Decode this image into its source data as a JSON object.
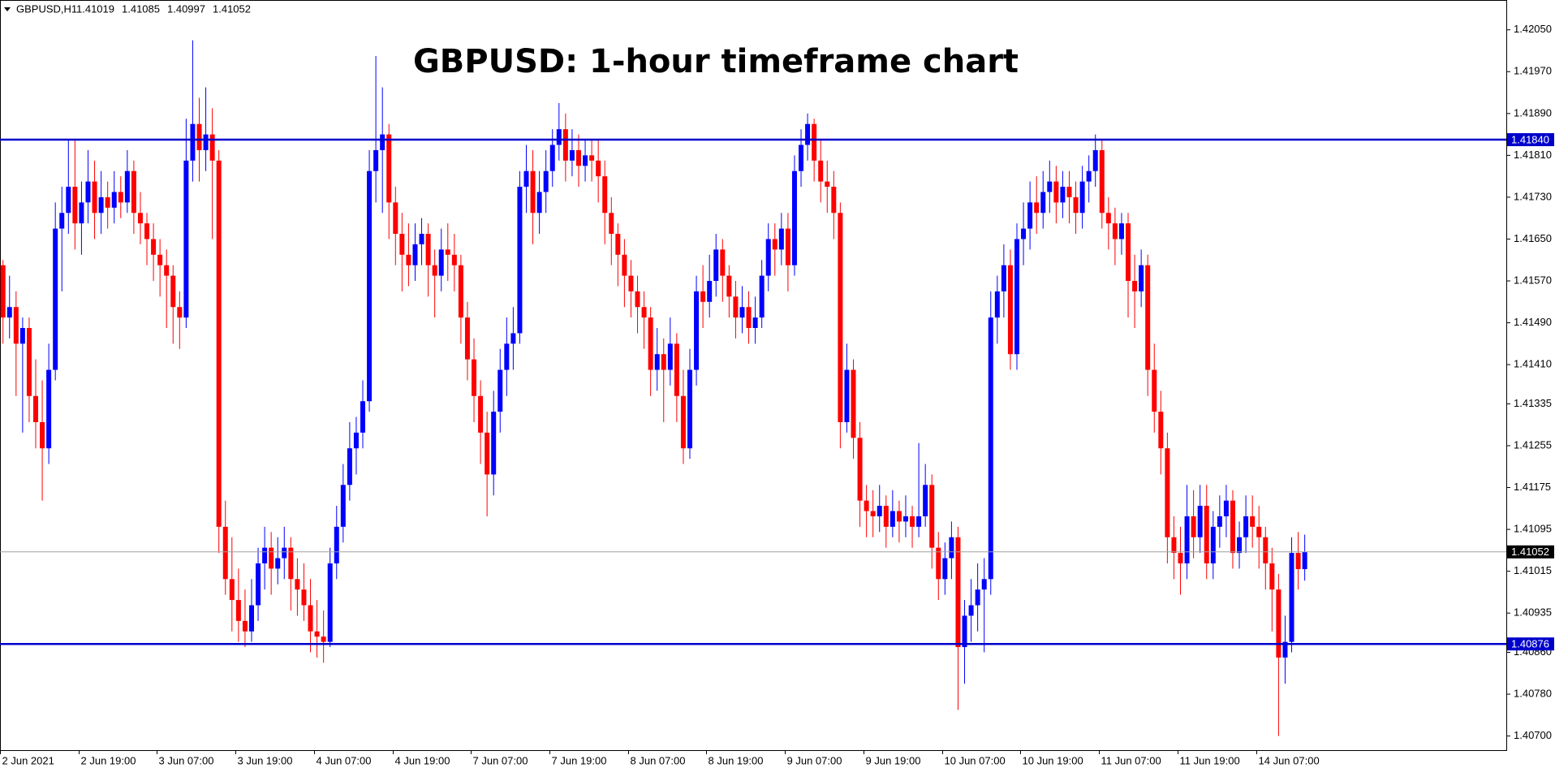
{
  "header": {
    "symbol": "GBPUSD,H1"
  },
  "chart_data": {
    "type": "candlestick",
    "title": "GBPUSD: 1-hour timeframe chart",
    "up_color": "#0000ff",
    "down_color": "#ff0000",
    "xtick_labels": [
      "2 Jun 2021",
      "2 Jun 19:00",
      "3 Jun 07:00",
      "3 Jun 19:00",
      "4 Jun 07:00",
      "4 Jun 19:00",
      "7 Jun 07:00",
      "7 Jun 19:00",
      "8 Jun 07:00",
      "8 Jun 19:00",
      "9 Jun 07:00",
      "9 Jun 19:00",
      "10 Jun 07:00",
      "10 Jun 19:00",
      "11 Jun 07:00",
      "11 Jun 19:00",
      "14 Jun 07:00"
    ],
    "ylim": [
      1.40673,
      1.42107
    ],
    "yticks": [
      {
        "value": 1.4205,
        "label": "1.42050"
      },
      {
        "value": 1.4197,
        "label": "1.41970"
      },
      {
        "value": 1.4189,
        "label": "1.41890"
      },
      {
        "value": 1.4181,
        "label": "1.41810"
      },
      {
        "value": 1.4173,
        "label": "1.41730"
      },
      {
        "value": 1.4165,
        "label": "1.41650"
      },
      {
        "value": 1.4157,
        "label": "1.41570"
      },
      {
        "value": 1.4149,
        "label": "1.41490"
      },
      {
        "value": 1.4141,
        "label": "1.41410"
      },
      1.41335,
      1.41255,
      1.41175,
      1.41095,
      1.41015,
      1.40935,
      {
        "value": 1.4086,
        "label": "1.40860"
      },
      {
        "value": 1.4078,
        "label": "1.40780"
      },
      {
        "value": 1.407,
        "label": "1.40700"
      }
    ],
    "levels": [
      {
        "value": 1.4184,
        "label": "1.41840",
        "color": "#0000cc"
      },
      {
        "value": 1.40876,
        "color": "#0000cc"
      },
      {
        "value": 1.41052,
        "color": "#000000"
      }
    ],
    "values": [
      [
        1.416,
        1.4161,
        1.4145,
        1.415
      ],
      [
        1.415,
        1.4158,
        1.4146,
        1.4152
      ],
      [
        1.4152,
        1.4155,
        1.4135,
        1.4145
      ],
      [
        1.4145,
        1.415,
        1.4128,
        1.4148
      ],
      [
        1.4148,
        1.415,
        1.413,
        1.4135
      ],
      [
        1.4135,
        1.4142,
        1.4125,
        1.413
      ],
      [
        1.413,
        1.4138,
        1.4115,
        1.4125
      ],
      [
        1.4125,
        1.4145,
        1.4122,
        1.414
      ],
      [
        1.414,
        1.4172,
        1.4138,
        1.4167
      ],
      [
        1.4167,
        1.4175,
        1.4155,
        1.417
      ],
      [
        1.417,
        1.4184,
        1.4166,
        1.4175
      ],
      [
        1.4175,
        1.4184,
        1.4163,
        1.4168
      ],
      [
        1.4168,
        1.4176,
        1.4162,
        1.4172
      ],
      [
        1.4172,
        1.4182,
        1.4168,
        1.4176
      ],
      [
        1.4176,
        1.418,
        1.4165,
        1.417
      ],
      [
        1.417,
        1.4178,
        1.4166,
        1.4173
      ],
      [
        1.4173,
        1.4176,
        1.4167,
        1.4171
      ],
      [
        1.4171,
        1.4178,
        1.4168,
        1.4174
      ],
      [
        1.4174,
        1.4177,
        1.4169,
        1.4172
      ],
      [
        1.4172,
        1.4182,
        1.417,
        1.4178
      ],
      [
        1.4178,
        1.418,
        1.4166,
        1.417
      ],
      [
        1.417,
        1.4174,
        1.4164,
        1.4168
      ],
      [
        1.4168,
        1.417,
        1.416,
        1.4165
      ],
      [
        1.4165,
        1.4168,
        1.4157,
        1.4162
      ],
      [
        1.4162,
        1.4165,
        1.4154,
        1.416
      ],
      [
        1.416,
        1.4163,
        1.4148,
        1.4158
      ],
      [
        1.4158,
        1.416,
        1.4145,
        1.4152
      ],
      [
        1.4152,
        1.4155,
        1.4144,
        1.415
      ],
      [
        1.415,
        1.4188,
        1.4148,
        1.418
      ],
      [
        1.418,
        1.4203,
        1.4176,
        1.4187
      ],
      [
        1.4187,
        1.4192,
        1.4176,
        1.4182
      ],
      [
        1.4182,
        1.4194,
        1.4178,
        1.4185
      ],
      [
        1.4185,
        1.419,
        1.4165,
        1.418
      ],
      [
        1.418,
        1.4182,
        1.4105,
        1.411
      ],
      [
        1.411,
        1.4115,
        1.4097,
        1.41
      ],
      [
        1.41,
        1.4108,
        1.409,
        1.4096
      ],
      [
        1.4096,
        1.4102,
        1.4088,
        1.4092
      ],
      [
        1.4092,
        1.4098,
        1.4087,
        1.409
      ],
      [
        1.409,
        1.41,
        1.4088,
        1.4095
      ],
      [
        1.4095,
        1.4106,
        1.4092,
        1.4103
      ],
      [
        1.4103,
        1.411,
        1.4098,
        1.4106
      ],
      [
        1.4106,
        1.4109,
        1.4097,
        1.4102
      ],
      [
        1.4102,
        1.4108,
        1.4099,
        1.4104
      ],
      [
        1.4104,
        1.411,
        1.41,
        1.4106
      ],
      [
        1.4106,
        1.4108,
        1.4094,
        1.41
      ],
      [
        1.41,
        1.4104,
        1.4093,
        1.4098
      ],
      [
        1.4098,
        1.4103,
        1.4092,
        1.4095
      ],
      [
        1.4095,
        1.41,
        1.4086,
        1.409
      ],
      [
        1.409,
        1.4096,
        1.4085,
        1.4089
      ],
      [
        1.4089,
        1.4094,
        1.4084,
        1.4088
      ],
      [
        1.4088,
        1.4106,
        1.4087,
        1.4103
      ],
      [
        1.4103,
        1.4114,
        1.41,
        1.411
      ],
      [
        1.411,
        1.4122,
        1.4107,
        1.4118
      ],
      [
        1.4118,
        1.413,
        1.4115,
        1.4125
      ],
      [
        1.4125,
        1.4131,
        1.412,
        1.4128
      ],
      [
        1.4128,
        1.4138,
        1.4125,
        1.4134
      ],
      [
        1.4134,
        1.4182,
        1.4132,
        1.4178
      ],
      [
        1.4178,
        1.42,
        1.4172,
        1.4182
      ],
      [
        1.4182,
        1.4194,
        1.417,
        1.4185
      ],
      [
        1.4185,
        1.4187,
        1.4165,
        1.4172
      ],
      [
        1.4172,
        1.4175,
        1.416,
        1.4166
      ],
      [
        1.4166,
        1.417,
        1.4155,
        1.4162
      ],
      [
        1.4162,
        1.4168,
        1.4156,
        1.416
      ],
      [
        1.416,
        1.4168,
        1.4157,
        1.4164
      ],
      [
        1.4164,
        1.4169,
        1.416,
        1.4166
      ],
      [
        1.4166,
        1.4168,
        1.4154,
        1.416
      ],
      [
        1.416,
        1.4163,
        1.415,
        1.4158
      ],
      [
        1.4158,
        1.4167,
        1.4155,
        1.4163
      ],
      [
        1.4163,
        1.4168,
        1.4157,
        1.4162
      ],
      [
        1.4162,
        1.4166,
        1.4155,
        1.416
      ],
      [
        1.416,
        1.4162,
        1.4145,
        1.415
      ],
      [
        1.415,
        1.4153,
        1.4138,
        1.4142
      ],
      [
        1.4142,
        1.4146,
        1.413,
        1.4135
      ],
      [
        1.4135,
        1.4138,
        1.4122,
        1.4128
      ],
      [
        1.4128,
        1.4132,
        1.4112,
        1.412
      ],
      [
        1.412,
        1.4136,
        1.4116,
        1.4132
      ],
      [
        1.4132,
        1.4144,
        1.4128,
        1.414
      ],
      [
        1.414,
        1.415,
        1.4135,
        1.4145
      ],
      [
        1.4145,
        1.4152,
        1.414,
        1.4147
      ],
      [
        1.4147,
        1.4178,
        1.4145,
        1.4175
      ],
      [
        1.4175,
        1.4183,
        1.417,
        1.4178
      ],
      [
        1.4178,
        1.4182,
        1.4164,
        1.417
      ],
      [
        1.417,
        1.4178,
        1.4166,
        1.4174
      ],
      [
        1.4174,
        1.4182,
        1.417,
        1.4178
      ],
      [
        1.4178,
        1.4186,
        1.4175,
        1.4183
      ],
      [
        1.4183,
        1.4191,
        1.418,
        1.4186
      ],
      [
        1.4186,
        1.4189,
        1.4176,
        1.418
      ],
      [
        1.418,
        1.4186,
        1.4177,
        1.4182
      ],
      [
        1.4182,
        1.4185,
        1.4175,
        1.4179
      ],
      [
        1.4179,
        1.4184,
        1.4176,
        1.4181
      ],
      [
        1.4181,
        1.4184,
        1.4176,
        1.418
      ],
      [
        1.418,
        1.4184,
        1.4172,
        1.4177
      ],
      [
        1.4177,
        1.418,
        1.4164,
        1.417
      ],
      [
        1.417,
        1.4173,
        1.416,
        1.4166
      ],
      [
        1.4166,
        1.4168,
        1.4156,
        1.4162
      ],
      [
        1.4162,
        1.4165,
        1.4152,
        1.4158
      ],
      [
        1.4158,
        1.4161,
        1.415,
        1.4155
      ],
      [
        1.4155,
        1.4158,
        1.4147,
        1.4152
      ],
      [
        1.4152,
        1.4155,
        1.4144,
        1.415
      ],
      [
        1.415,
        1.4152,
        1.4135,
        1.414
      ],
      [
        1.414,
        1.4148,
        1.4136,
        1.4143
      ],
      [
        1.4143,
        1.4146,
        1.413,
        1.414
      ],
      [
        1.414,
        1.415,
        1.4137,
        1.4145
      ],
      [
        1.4145,
        1.4147,
        1.413,
        1.4135
      ],
      [
        1.4135,
        1.414,
        1.4122,
        1.4125
      ],
      [
        1.4125,
        1.4144,
        1.4123,
        1.414
      ],
      [
        1.414,
        1.4158,
        1.4137,
        1.4155
      ],
      [
        1.4155,
        1.416,
        1.4148,
        1.4153
      ],
      [
        1.4153,
        1.4162,
        1.415,
        1.4157
      ],
      [
        1.4157,
        1.4166,
        1.4154,
        1.4163
      ],
      [
        1.4163,
        1.4165,
        1.4153,
        1.4158
      ],
      [
        1.4158,
        1.416,
        1.415,
        1.4154
      ],
      [
        1.4154,
        1.4157,
        1.4146,
        1.415
      ],
      [
        1.415,
        1.4156,
        1.4147,
        1.4152
      ],
      [
        1.4152,
        1.4155,
        1.4145,
        1.4148
      ],
      [
        1.4148,
        1.4154,
        1.4145,
        1.415
      ],
      [
        1.415,
        1.4161,
        1.4148,
        1.4158
      ],
      [
        1.4158,
        1.4168,
        1.4155,
        1.4165
      ],
      [
        1.4165,
        1.4168,
        1.4158,
        1.4163
      ],
      [
        1.4163,
        1.417,
        1.416,
        1.4167
      ],
      [
        1.4167,
        1.417,
        1.4155,
        1.416
      ],
      [
        1.416,
        1.4181,
        1.4158,
        1.4178
      ],
      [
        1.4178,
        1.4186,
        1.4175,
        1.4183
      ],
      [
        1.4183,
        1.4189,
        1.418,
        1.4187
      ],
      [
        1.4187,
        1.4188,
        1.4176,
        1.418
      ],
      [
        1.418,
        1.4184,
        1.4172,
        1.4176
      ],
      [
        1.4176,
        1.418,
        1.417,
        1.4175
      ],
      [
        1.4175,
        1.4178,
        1.4165,
        1.417
      ],
      [
        1.417,
        1.4172,
        1.4125,
        1.413
      ],
      [
        1.413,
        1.4145,
        1.4128,
        1.414
      ],
      [
        1.414,
        1.4142,
        1.4123,
        1.4127
      ],
      [
        1.4127,
        1.413,
        1.411,
        1.4115
      ],
      [
        1.4115,
        1.4118,
        1.4108,
        1.4113
      ],
      [
        1.4113,
        1.4117,
        1.4108,
        1.4112
      ],
      [
        1.4112,
        1.4118,
        1.4109,
        1.4114
      ],
      [
        1.4114,
        1.4116,
        1.4106,
        1.411
      ],
      [
        1.411,
        1.4117,
        1.4108,
        1.4113
      ],
      [
        1.4113,
        1.4115,
        1.4107,
        1.4111
      ],
      [
        1.4111,
        1.4116,
        1.4108,
        1.4112
      ],
      [
        1.4112,
        1.4114,
        1.4106,
        1.411
      ],
      [
        1.411,
        1.4126,
        1.4108,
        1.4112
      ],
      [
        1.4112,
        1.4122,
        1.411,
        1.4118
      ],
      [
        1.4118,
        1.412,
        1.4102,
        1.4106
      ],
      [
        1.4106,
        1.4109,
        1.4096,
        1.41
      ],
      [
        1.41,
        1.4107,
        1.4097,
        1.4104
      ],
      [
        1.4104,
        1.4111,
        1.41,
        1.4108
      ],
      [
        1.4108,
        1.411,
        1.4075,
        1.4087
      ],
      [
        1.4087,
        1.4096,
        1.408,
        1.4093
      ],
      [
        1.4093,
        1.41,
        1.4088,
        1.4095
      ],
      [
        1.4095,
        1.4103,
        1.409,
        1.4098
      ],
      [
        1.4098,
        1.4104,
        1.4086,
        1.41
      ],
      [
        1.41,
        1.4155,
        1.4097,
        1.415
      ],
      [
        1.415,
        1.4158,
        1.4145,
        1.4155
      ],
      [
        1.4155,
        1.4164,
        1.415,
        1.416
      ],
      [
        1.416,
        1.4163,
        1.414,
        1.4143
      ],
      [
        1.4143,
        1.4168,
        1.414,
        1.4165
      ],
      [
        1.4165,
        1.4172,
        1.416,
        1.4167
      ],
      [
        1.4167,
        1.4176,
        1.4163,
        1.4172
      ],
      [
        1.4172,
        1.4177,
        1.4166,
        1.417
      ],
      [
        1.417,
        1.4178,
        1.4167,
        1.4174
      ],
      [
        1.4174,
        1.418,
        1.417,
        1.4176
      ],
      [
        1.4176,
        1.4179,
        1.4168,
        1.4172
      ],
      [
        1.4172,
        1.4178,
        1.4169,
        1.4175
      ],
      [
        1.4175,
        1.4178,
        1.4168,
        1.4173
      ],
      [
        1.4173,
        1.4176,
        1.4166,
        1.417
      ],
      [
        1.417,
        1.4179,
        1.4167,
        1.4176
      ],
      [
        1.4176,
        1.4181,
        1.4172,
        1.4178
      ],
      [
        1.4178,
        1.4185,
        1.4175,
        1.4182
      ],
      [
        1.4182,
        1.4184,
        1.4167,
        1.417
      ],
      [
        1.417,
        1.4173,
        1.4163,
        1.4168
      ],
      [
        1.4168,
        1.4171,
        1.416,
        1.4165
      ],
      [
        1.4165,
        1.417,
        1.4162,
        1.4168
      ],
      [
        1.4168,
        1.417,
        1.415,
        1.4157
      ],
      [
        1.4157,
        1.4162,
        1.4148,
        1.4155
      ],
      [
        1.4155,
        1.4163,
        1.4152,
        1.416
      ],
      [
        1.416,
        1.4162,
        1.4135,
        1.414
      ],
      [
        1.414,
        1.4145,
        1.4128,
        1.4132
      ],
      [
        1.4132,
        1.4136,
        1.412,
        1.4125
      ],
      [
        1.4125,
        1.4128,
        1.4103,
        1.4108
      ],
      [
        1.4108,
        1.4112,
        1.41,
        1.4105
      ],
      [
        1.4105,
        1.411,
        1.4097,
        1.4103
      ],
      [
        1.4103,
        1.4118,
        1.41,
        1.4112
      ],
      [
        1.4112,
        1.4117,
        1.4104,
        1.4108
      ],
      [
        1.4108,
        1.4118,
        1.4105,
        1.4114
      ],
      [
        1.4114,
        1.4118,
        1.41,
        1.4103
      ],
      [
        1.4103,
        1.4113,
        1.41,
        1.411
      ],
      [
        1.411,
        1.4116,
        1.4106,
        1.4112
      ],
      [
        1.4112,
        1.4118,
        1.4108,
        1.4115
      ],
      [
        1.4115,
        1.4117,
        1.4102,
        1.4105
      ],
      [
        1.4105,
        1.4111,
        1.4102,
        1.4108
      ],
      [
        1.4108,
        1.4116,
        1.4105,
        1.4112
      ],
      [
        1.4112,
        1.4116,
        1.4106,
        1.411
      ],
      [
        1.411,
        1.4114,
        1.4102,
        1.4108
      ],
      [
        1.4108,
        1.411,
        1.4098,
        1.4103
      ],
      [
        1.4103,
        1.4106,
        1.409,
        1.4098
      ],
      [
        1.4098,
        1.4101,
        1.407,
        1.4085
      ],
      [
        1.4085,
        1.4093,
        1.408,
        1.4088
      ],
      [
        1.4088,
        1.4108,
        1.4086,
        1.4105
      ],
      [
        1.4105,
        1.4109,
        1.4098,
        1.41019
      ],
      [
        1.41019,
        1.41085,
        1.40997,
        1.41052
      ]
    ]
  }
}
